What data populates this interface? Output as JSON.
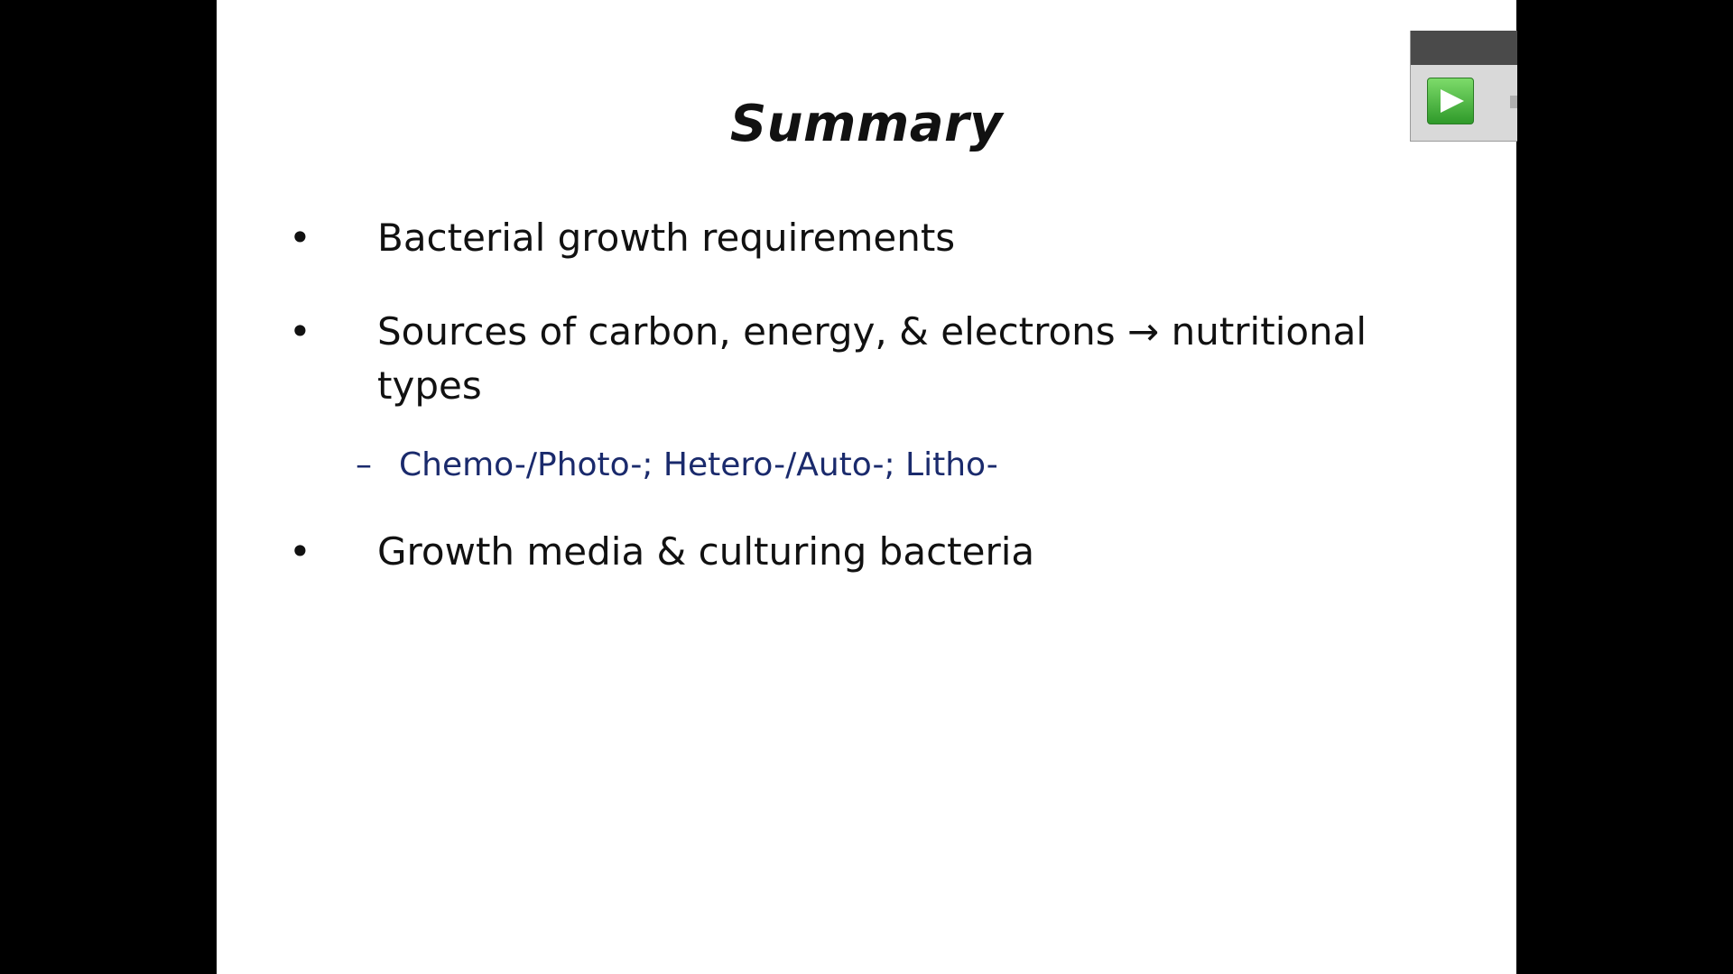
{
  "slide": {
    "title": "Summary",
    "bullets": [
      {
        "text": "Bacterial growth requirements"
      },
      {
        "text": "Sources of carbon, energy, & electrons → nutritional",
        "text_line2": "types"
      },
      {
        "text": "Growth media & culturing bacteria"
      }
    ],
    "sub_bullet": {
      "dash": "–",
      "text": "Chemo-/Photo-; Hetero-/Auto-; Litho-"
    },
    "bullet_glyph": "•"
  },
  "player": {
    "play_icon": "play-icon"
  },
  "colors": {
    "background": "#000000",
    "slide": "#ffffff",
    "text": "#111111",
    "sub_text": "#1a2a6c",
    "play_green": "#3fb336"
  }
}
